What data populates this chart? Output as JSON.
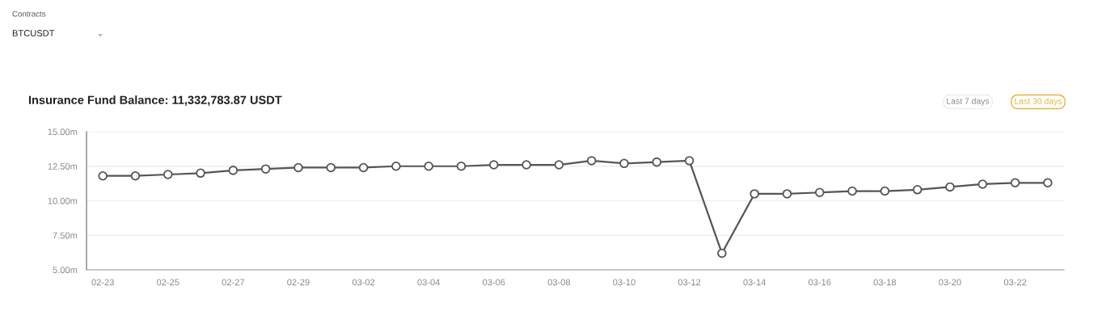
{
  "chart_data": {
    "type": "line",
    "title": "Insurance Fund Balance: 11,332,783.87 USDT",
    "categories": [
      "02-23",
      null,
      "02-25",
      null,
      "02-27",
      null,
      "02-29",
      null,
      "03-02",
      null,
      "03-04",
      null,
      "03-06",
      null,
      "03-08",
      null,
      "03-10",
      null,
      "03-12",
      null,
      "03-14",
      null,
      "03-16",
      null,
      "03-18",
      null,
      "03-20",
      null,
      "03-22",
      null
    ],
    "series": [
      {
        "color": "#555555",
        "values": [
          11.8,
          11.8,
          11.9,
          12.0,
          12.2,
          12.3,
          12.4,
          12.4,
          12.4,
          12.5,
          12.5,
          12.5,
          12.6,
          12.6,
          12.6,
          12.9,
          12.7,
          12.8,
          12.9,
          6.2,
          10.5,
          10.5,
          10.6,
          10.7,
          10.7,
          10.8,
          11.0,
          11.2,
          11.3,
          11.3
        ]
      }
    ],
    "ylim": [
      5,
      15
    ],
    "yticks": [
      {
        "value": 5,
        "label": "5.00m"
      },
      {
        "value": 7.5,
        "label": "7.50m"
      },
      {
        "value": 10,
        "label": "10.00m"
      },
      {
        "value": 12.5,
        "label": "12.50m"
      },
      {
        "value": 15,
        "label": "15.00m"
      }
    ],
    "grid": "y",
    "marker": "circle",
    "line_style": "solid",
    "annotations": [
      "Contracts",
      "BTCUSDT",
      "Last 7 days",
      "Last 30 days"
    ]
  }
}
